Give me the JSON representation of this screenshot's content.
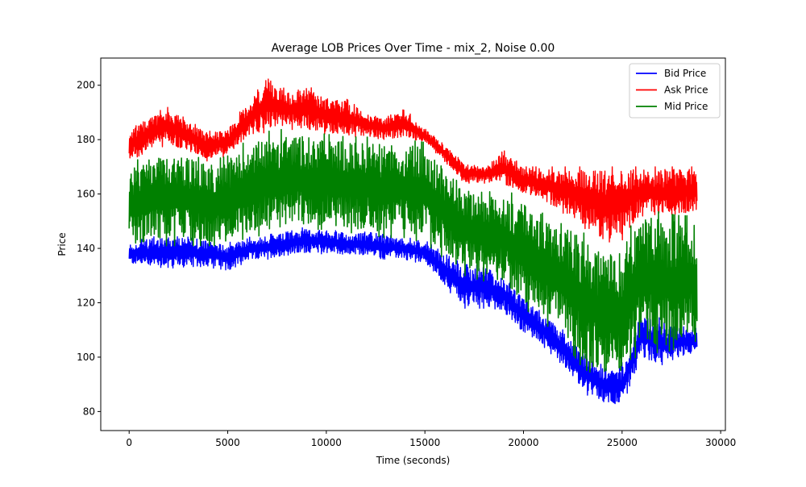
{
  "chart_data": {
    "type": "line",
    "title": "Average LOB Prices Over Time - mix_2, Noise 0.00",
    "xlabel": "Time (seconds)",
    "ylabel": "Price",
    "xlim": [
      -1440,
      30240
    ],
    "ylim": [
      73,
      210
    ],
    "x_ticks": [
      0,
      5000,
      10000,
      15000,
      20000,
      25000,
      30000
    ],
    "x_tick_labels": [
      "0",
      "5000",
      "10000",
      "15000",
      "20000",
      "25000",
      "30000"
    ],
    "y_ticks": [
      80,
      100,
      120,
      140,
      160,
      180,
      200
    ],
    "y_tick_labels": [
      "80",
      "100",
      "120",
      "140",
      "160",
      "180",
      "200"
    ],
    "grid": false,
    "legend_position": "top-right",
    "x_range": [
      0,
      28800
    ],
    "series": [
      {
        "name": "Bid Price",
        "color": "#0000ff",
        "x": [
          0,
          1000,
          2000,
          3000,
          4000,
          5000,
          6000,
          7000,
          8000,
          9000,
          10000,
          11000,
          12000,
          13000,
          14000,
          15000,
          16000,
          17000,
          18000,
          19000,
          20000,
          21000,
          22000,
          23000,
          24000,
          25000,
          26000,
          27000,
          28000,
          28800
        ],
        "low": [
          134,
          133,
          133,
          132,
          133,
          132,
          135,
          136,
          137,
          138,
          138,
          137,
          137,
          136,
          136,
          134,
          126,
          118,
          118,
          116,
          108,
          104,
          97,
          87,
          83,
          81,
          99,
          96,
          100,
          101
        ],
        "high": [
          142,
          144,
          145,
          145,
          143,
          142,
          144,
          145,
          146,
          148,
          147,
          146,
          146,
          145,
          144,
          143,
          138,
          134,
          134,
          130,
          122,
          116,
          110,
          102,
          97,
          98,
          118,
          114,
          111,
          112
        ]
      },
      {
        "name": "Ask Price",
        "color": "#ff0000",
        "x": [
          0,
          1000,
          2000,
          3000,
          4000,
          5000,
          6000,
          7000,
          8000,
          9000,
          10000,
          11000,
          12000,
          13000,
          14000,
          15000,
          16000,
          17000,
          18000,
          19000,
          20000,
          21000,
          22000,
          23000,
          24000,
          25000,
          26000,
          27000,
          28000,
          28800
        ],
        "low": [
          172,
          176,
          178,
          175,
          172,
          174,
          180,
          183,
          184,
          183,
          182,
          181,
          181,
          180,
          180,
          179,
          172,
          164,
          164,
          163,
          160,
          157,
          153,
          148,
          142,
          143,
          152,
          150,
          152,
          153
        ],
        "high": [
          183,
          189,
          192,
          187,
          183,
          184,
          194,
          204,
          198,
          200,
          196,
          195,
          190,
          188,
          192,
          184,
          178,
          172,
          170,
          176,
          170,
          170,
          170,
          170,
          170,
          170,
          170,
          170,
          170,
          170
        ]
      },
      {
        "name": "Mid Price",
        "color": "#008000",
        "x": [
          0,
          1000,
          2000,
          3000,
          4000,
          5000,
          6000,
          7000,
          8000,
          9000,
          10000,
          11000,
          12000,
          13000,
          14000,
          15000,
          16000,
          17000,
          18000,
          19000,
          20000,
          21000,
          22000,
          23000,
          24000,
          25000,
          26000,
          27000,
          28000,
          28800
        ],
        "low": [
          140,
          141,
          141,
          141,
          141,
          141,
          144,
          145,
          146,
          147,
          147,
          146,
          145,
          144,
          144,
          142,
          136,
          130,
          128,
          126,
          118,
          113,
          106,
          96,
          92,
          91,
          104,
          101,
          104,
          106
        ],
        "high": [
          170,
          176,
          178,
          175,
          172,
          174,
          180,
          183,
          184,
          183,
          182,
          181,
          181,
          180,
          180,
          179,
          171,
          164,
          163,
          162,
          158,
          155,
          152,
          146,
          140,
          142,
          156,
          153,
          152,
          152
        ]
      }
    ]
  }
}
